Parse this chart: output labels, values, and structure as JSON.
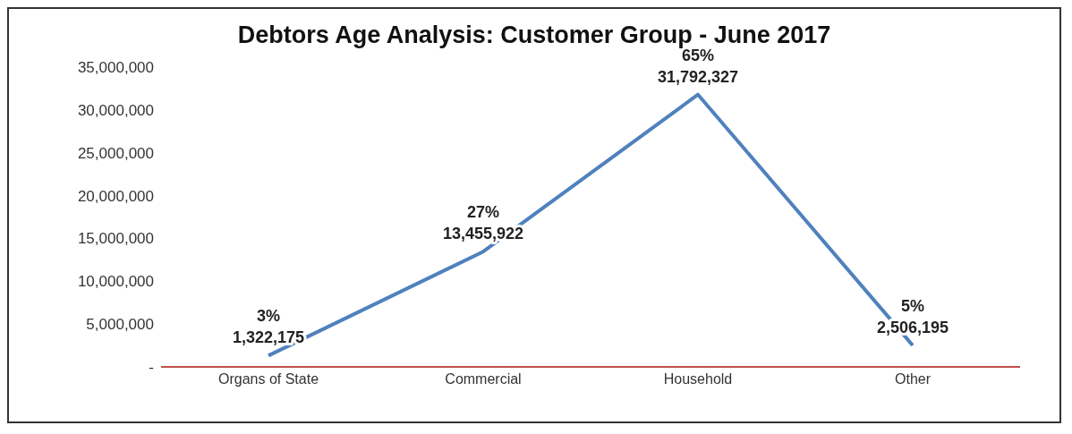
{
  "chart_data": {
    "type": "line",
    "title": "Debtors Age Analysis: Customer Group - June 2017",
    "categories": [
      "Organs of State",
      "Commercial",
      "Household",
      "Other"
    ],
    "values": [
      1322175,
      13455922,
      31792327,
      2506195
    ],
    "value_labels": [
      "3%\n1,322,175",
      "27%\n13,455,922",
      "65%\n31,792,327",
      "5%\n2,506,195"
    ],
    "color": "#4f81bd",
    "marker": "none",
    "ylim": [
      0,
      35000000
    ],
    "yticks": [
      {
        "value": 0,
        "label": "-"
      },
      {
        "value": 5000000,
        "label": "5,000,000"
      },
      {
        "value": 10000000,
        "label": "10,000,000"
      },
      {
        "value": 15000000,
        "label": "15,000,000"
      },
      {
        "value": 20000000,
        "label": "20,000,000"
      },
      {
        "value": 25000000,
        "label": "25,000,000"
      },
      {
        "value": 30000000,
        "label": "30,000,000"
      },
      {
        "value": 35000000,
        "label": "35,000,000"
      }
    ]
  }
}
